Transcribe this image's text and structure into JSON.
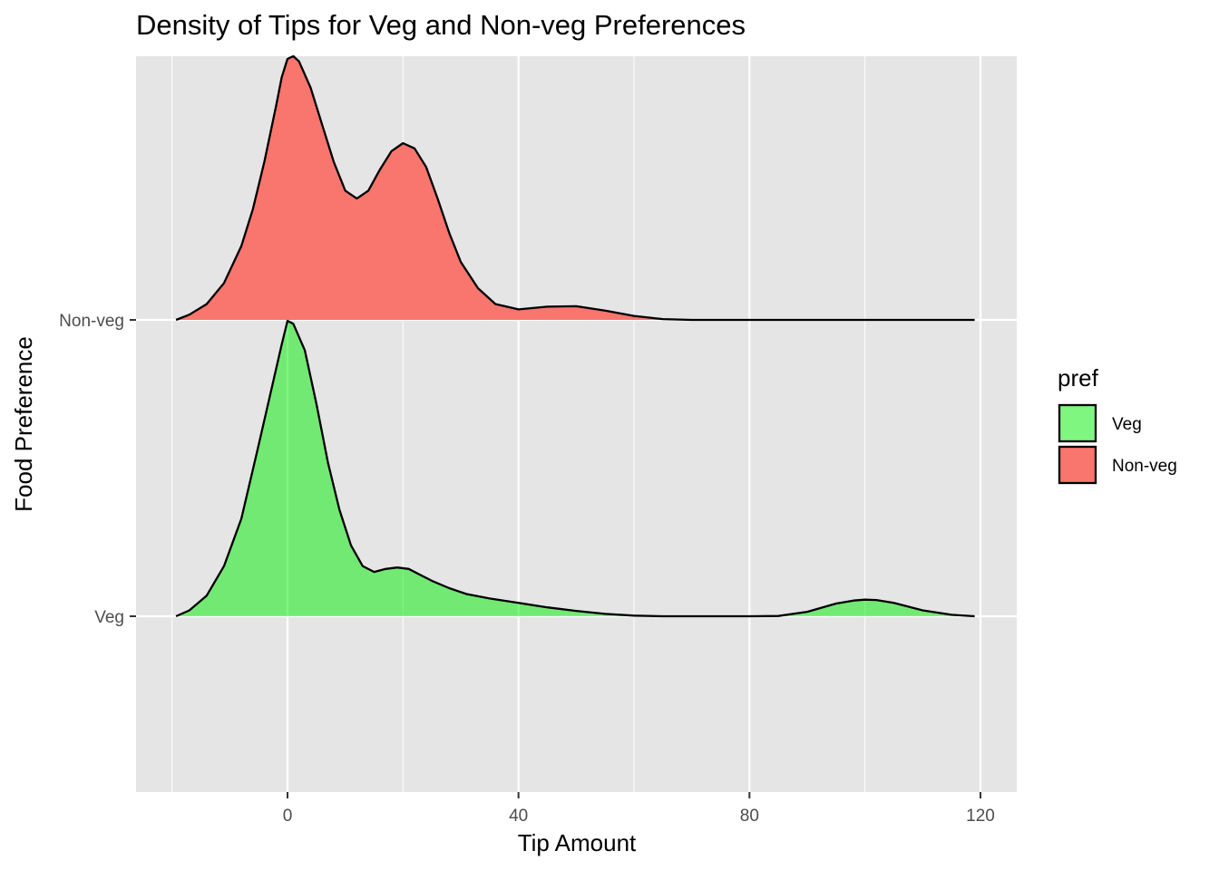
{
  "chart_data": {
    "type": "area",
    "subtype": "ridgeline-density",
    "title": "Density of Tips for Veg and Non-veg Preferences",
    "xlabel": "Tip Amount",
    "ylabel": "Food Preference",
    "xlim": [
      -26,
      126
    ],
    "x_ticks": [
      0,
      40,
      80,
      120
    ],
    "x_tick_labels": [
      "0",
      "40",
      "80",
      "120"
    ],
    "y_categories": [
      "Veg",
      "Non-veg"
    ],
    "grid": true,
    "panel_background": "#e5e5e5",
    "grid_color": "#ffffff",
    "series": [
      {
        "name": "Veg",
        "color": "#00ee00",
        "fill_alpha": 0.5,
        "outline_color": "#000000",
        "points": [
          [
            -19.3,
            0.0
          ],
          [
            -17,
            0.02
          ],
          [
            -14,
            0.07
          ],
          [
            -11,
            0.17
          ],
          [
            -8,
            0.33
          ],
          [
            -5,
            0.58
          ],
          [
            -3,
            0.75
          ],
          [
            -1,
            0.92
          ],
          [
            0,
            1.0
          ],
          [
            1,
            0.99
          ],
          [
            3,
            0.9
          ],
          [
            5,
            0.72
          ],
          [
            7,
            0.52
          ],
          [
            9,
            0.36
          ],
          [
            11,
            0.24
          ],
          [
            13,
            0.17
          ],
          [
            15,
            0.15
          ],
          [
            17,
            0.16
          ],
          [
            19,
            0.165
          ],
          [
            21,
            0.16
          ],
          [
            23,
            0.14
          ],
          [
            25,
            0.12
          ],
          [
            28,
            0.095
          ],
          [
            31,
            0.075
          ],
          [
            35,
            0.06
          ],
          [
            40,
            0.045
          ],
          [
            45,
            0.03
          ],
          [
            50,
            0.018
          ],
          [
            55,
            0.008
          ],
          [
            60,
            0.002
          ],
          [
            65,
            0.0
          ],
          [
            70,
            0.0
          ],
          [
            75,
            0.0
          ],
          [
            80,
            0.0
          ],
          [
            85,
            0.001
          ],
          [
            90,
            0.015
          ],
          [
            95,
            0.043
          ],
          [
            98,
            0.053
          ],
          [
            100,
            0.056
          ],
          [
            102,
            0.055
          ],
          [
            105,
            0.045
          ],
          [
            110,
            0.02
          ],
          [
            115,
            0.005
          ],
          [
            119,
            0.0
          ]
        ]
      },
      {
        "name": "Non-veg",
        "color": "#f8766d",
        "fill_alpha": 1.0,
        "outline_color": "#000000",
        "points": [
          [
            -19.3,
            0.0
          ],
          [
            -17,
            0.02
          ],
          [
            -14,
            0.06
          ],
          [
            -11,
            0.14
          ],
          [
            -8,
            0.28
          ],
          [
            -6,
            0.42
          ],
          [
            -4,
            0.6
          ],
          [
            -2,
            0.81
          ],
          [
            -1,
            0.92
          ],
          [
            0,
            0.99
          ],
          [
            1,
            1.0
          ],
          [
            2,
            0.98
          ],
          [
            4,
            0.88
          ],
          [
            6,
            0.74
          ],
          [
            8,
            0.6
          ],
          [
            10,
            0.49
          ],
          [
            12,
            0.46
          ],
          [
            14,
            0.49
          ],
          [
            16,
            0.57
          ],
          [
            18,
            0.64
          ],
          [
            20,
            0.67
          ],
          [
            22,
            0.65
          ],
          [
            24,
            0.58
          ],
          [
            26,
            0.46
          ],
          [
            28,
            0.33
          ],
          [
            30,
            0.22
          ],
          [
            33,
            0.12
          ],
          [
            36,
            0.06
          ],
          [
            40,
            0.04
          ],
          [
            45,
            0.05
          ],
          [
            50,
            0.052
          ],
          [
            55,
            0.035
          ],
          [
            60,
            0.015
          ],
          [
            65,
            0.003
          ],
          [
            70,
            0.0
          ],
          [
            80,
            0.0
          ],
          [
            90,
            0.0
          ],
          [
            100,
            0.0
          ],
          [
            110,
            0.0
          ],
          [
            119,
            0.0
          ]
        ]
      }
    ],
    "legend": {
      "title": "pref",
      "placement": "right",
      "entries": [
        {
          "label": "Veg",
          "color": "#00ee00",
          "fill_alpha": 0.5
        },
        {
          "label": "Non-veg",
          "color": "#f8766d",
          "fill_alpha": 1.0
        }
      ]
    }
  }
}
